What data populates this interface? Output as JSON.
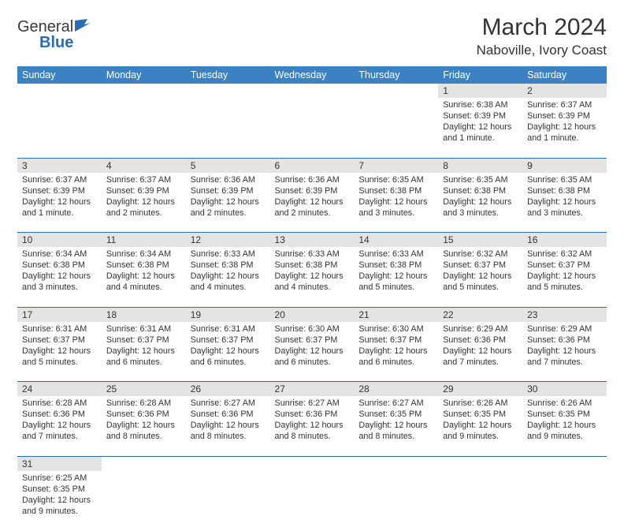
{
  "brand": {
    "name1": "General",
    "name2": "Blue"
  },
  "title": "March 2024",
  "location": "Naboville, Ivory Coast",
  "colors": {
    "header_bg": "#3b82c4",
    "header_text": "#ffffff",
    "daynum_bg": "#e4e4e4",
    "row_border": "#2a6db5",
    "brand_blue": "#2a6db5",
    "text": "#333333"
  },
  "weekdays": [
    "Sunday",
    "Monday",
    "Tuesday",
    "Wednesday",
    "Thursday",
    "Friday",
    "Saturday"
  ],
  "weeks": [
    [
      null,
      null,
      null,
      null,
      null,
      {
        "n": "1",
        "sunrise": "6:38 AM",
        "sunset": "6:39 PM",
        "daylight": "12 hours and 1 minute."
      },
      {
        "n": "2",
        "sunrise": "6:37 AM",
        "sunset": "6:39 PM",
        "daylight": "12 hours and 1 minute."
      }
    ],
    [
      {
        "n": "3",
        "sunrise": "6:37 AM",
        "sunset": "6:39 PM",
        "daylight": "12 hours and 1 minute."
      },
      {
        "n": "4",
        "sunrise": "6:37 AM",
        "sunset": "6:39 PM",
        "daylight": "12 hours and 2 minutes."
      },
      {
        "n": "5",
        "sunrise": "6:36 AM",
        "sunset": "6:39 PM",
        "daylight": "12 hours and 2 minutes."
      },
      {
        "n": "6",
        "sunrise": "6:36 AM",
        "sunset": "6:39 PM",
        "daylight": "12 hours and 2 minutes."
      },
      {
        "n": "7",
        "sunrise": "6:35 AM",
        "sunset": "6:38 PM",
        "daylight": "12 hours and 3 minutes."
      },
      {
        "n": "8",
        "sunrise": "6:35 AM",
        "sunset": "6:38 PM",
        "daylight": "12 hours and 3 minutes."
      },
      {
        "n": "9",
        "sunrise": "6:35 AM",
        "sunset": "6:38 PM",
        "daylight": "12 hours and 3 minutes."
      }
    ],
    [
      {
        "n": "10",
        "sunrise": "6:34 AM",
        "sunset": "6:38 PM",
        "daylight": "12 hours and 3 minutes."
      },
      {
        "n": "11",
        "sunrise": "6:34 AM",
        "sunset": "6:38 PM",
        "daylight": "12 hours and 4 minutes."
      },
      {
        "n": "12",
        "sunrise": "6:33 AM",
        "sunset": "6:38 PM",
        "daylight": "12 hours and 4 minutes."
      },
      {
        "n": "13",
        "sunrise": "6:33 AM",
        "sunset": "6:38 PM",
        "daylight": "12 hours and 4 minutes."
      },
      {
        "n": "14",
        "sunrise": "6:33 AM",
        "sunset": "6:38 PM",
        "daylight": "12 hours and 5 minutes."
      },
      {
        "n": "15",
        "sunrise": "6:32 AM",
        "sunset": "6:37 PM",
        "daylight": "12 hours and 5 minutes."
      },
      {
        "n": "16",
        "sunrise": "6:32 AM",
        "sunset": "6:37 PM",
        "daylight": "12 hours and 5 minutes."
      }
    ],
    [
      {
        "n": "17",
        "sunrise": "6:31 AM",
        "sunset": "6:37 PM",
        "daylight": "12 hours and 5 minutes."
      },
      {
        "n": "18",
        "sunrise": "6:31 AM",
        "sunset": "6:37 PM",
        "daylight": "12 hours and 6 minutes."
      },
      {
        "n": "19",
        "sunrise": "6:31 AM",
        "sunset": "6:37 PM",
        "daylight": "12 hours and 6 minutes."
      },
      {
        "n": "20",
        "sunrise": "6:30 AM",
        "sunset": "6:37 PM",
        "daylight": "12 hours and 6 minutes."
      },
      {
        "n": "21",
        "sunrise": "6:30 AM",
        "sunset": "6:37 PM",
        "daylight": "12 hours and 6 minutes."
      },
      {
        "n": "22",
        "sunrise": "6:29 AM",
        "sunset": "6:36 PM",
        "daylight": "12 hours and 7 minutes."
      },
      {
        "n": "23",
        "sunrise": "6:29 AM",
        "sunset": "6:36 PM",
        "daylight": "12 hours and 7 minutes."
      }
    ],
    [
      {
        "n": "24",
        "sunrise": "6:28 AM",
        "sunset": "6:36 PM",
        "daylight": "12 hours and 7 minutes."
      },
      {
        "n": "25",
        "sunrise": "6:28 AM",
        "sunset": "6:36 PM",
        "daylight": "12 hours and 8 minutes."
      },
      {
        "n": "26",
        "sunrise": "6:27 AM",
        "sunset": "6:36 PM",
        "daylight": "12 hours and 8 minutes."
      },
      {
        "n": "27",
        "sunrise": "6:27 AM",
        "sunset": "6:36 PM",
        "daylight": "12 hours and 8 minutes."
      },
      {
        "n": "28",
        "sunrise": "6:27 AM",
        "sunset": "6:35 PM",
        "daylight": "12 hours and 8 minutes."
      },
      {
        "n": "29",
        "sunrise": "6:26 AM",
        "sunset": "6:35 PM",
        "daylight": "12 hours and 9 minutes."
      },
      {
        "n": "30",
        "sunrise": "6:26 AM",
        "sunset": "6:35 PM",
        "daylight": "12 hours and 9 minutes."
      }
    ],
    [
      {
        "n": "31",
        "sunrise": "6:25 AM",
        "sunset": "6:35 PM",
        "daylight": "12 hours and 9 minutes."
      },
      null,
      null,
      null,
      null,
      null,
      null
    ]
  ],
  "labels": {
    "sunrise": "Sunrise:",
    "sunset": "Sunset:",
    "daylight": "Daylight:"
  }
}
